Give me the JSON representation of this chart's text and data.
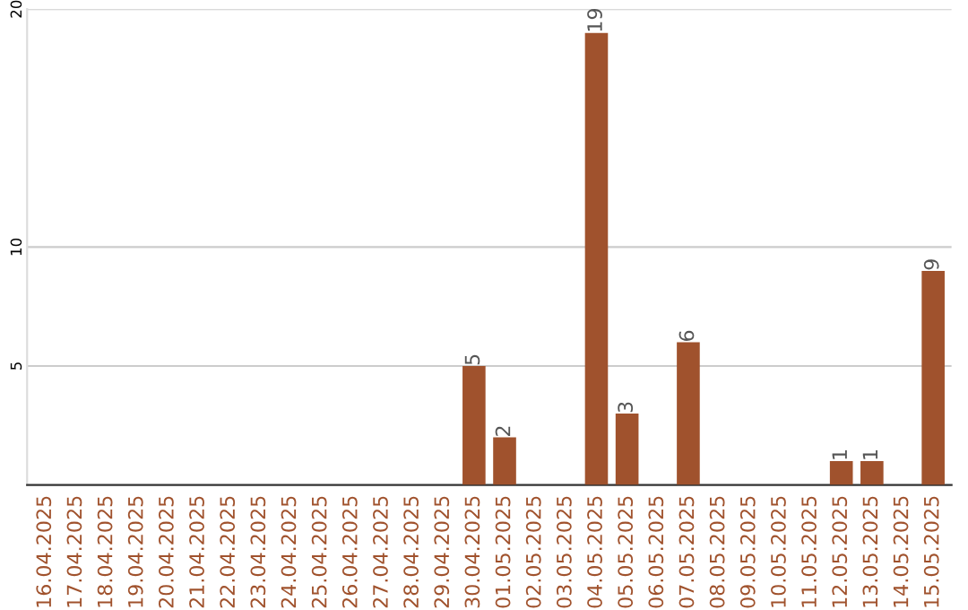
{
  "chart_data": {
    "type": "bar",
    "categories": [
      "16.04.2025",
      "17.04.2025",
      "18.04.2025",
      "19.04.2025",
      "20.04.2025",
      "21.04.2025",
      "22.04.2025",
      "23.04.2025",
      "24.04.2025",
      "25.04.2025",
      "26.04.2025",
      "27.04.2025",
      "28.04.2025",
      "29.04.2025",
      "30.04.2025",
      "01.05.2025",
      "02.05.2025",
      "03.05.2025",
      "04.05.2025",
      "05.05.2025",
      "06.05.2025",
      "07.05.2025",
      "08.05.2025",
      "09.05.2025",
      "10.05.2025",
      "11.05.2025",
      "12.05.2025",
      "13.05.2025",
      "14.05.2025",
      "15.05.2025"
    ],
    "values": [
      0,
      0,
      0,
      0,
      0,
      0,
      0,
      0,
      0,
      0,
      0,
      0,
      0,
      0,
      5,
      2,
      0,
      0,
      19,
      3,
      0,
      6,
      0,
      0,
      0,
      0,
      1,
      1,
      0,
      9
    ],
    "value_labels": [
      null,
      null,
      null,
      null,
      null,
      null,
      null,
      null,
      null,
      null,
      null,
      null,
      null,
      null,
      "5",
      "2",
      null,
      null,
      "19",
      "3",
      null,
      "6",
      null,
      null,
      null,
      null,
      "1",
      "1",
      null,
      "9"
    ],
    "color": "#a0522d",
    "ylim": [
      0,
      20
    ],
    "yticks": [
      5,
      10,
      20
    ],
    "grid": "y"
  }
}
